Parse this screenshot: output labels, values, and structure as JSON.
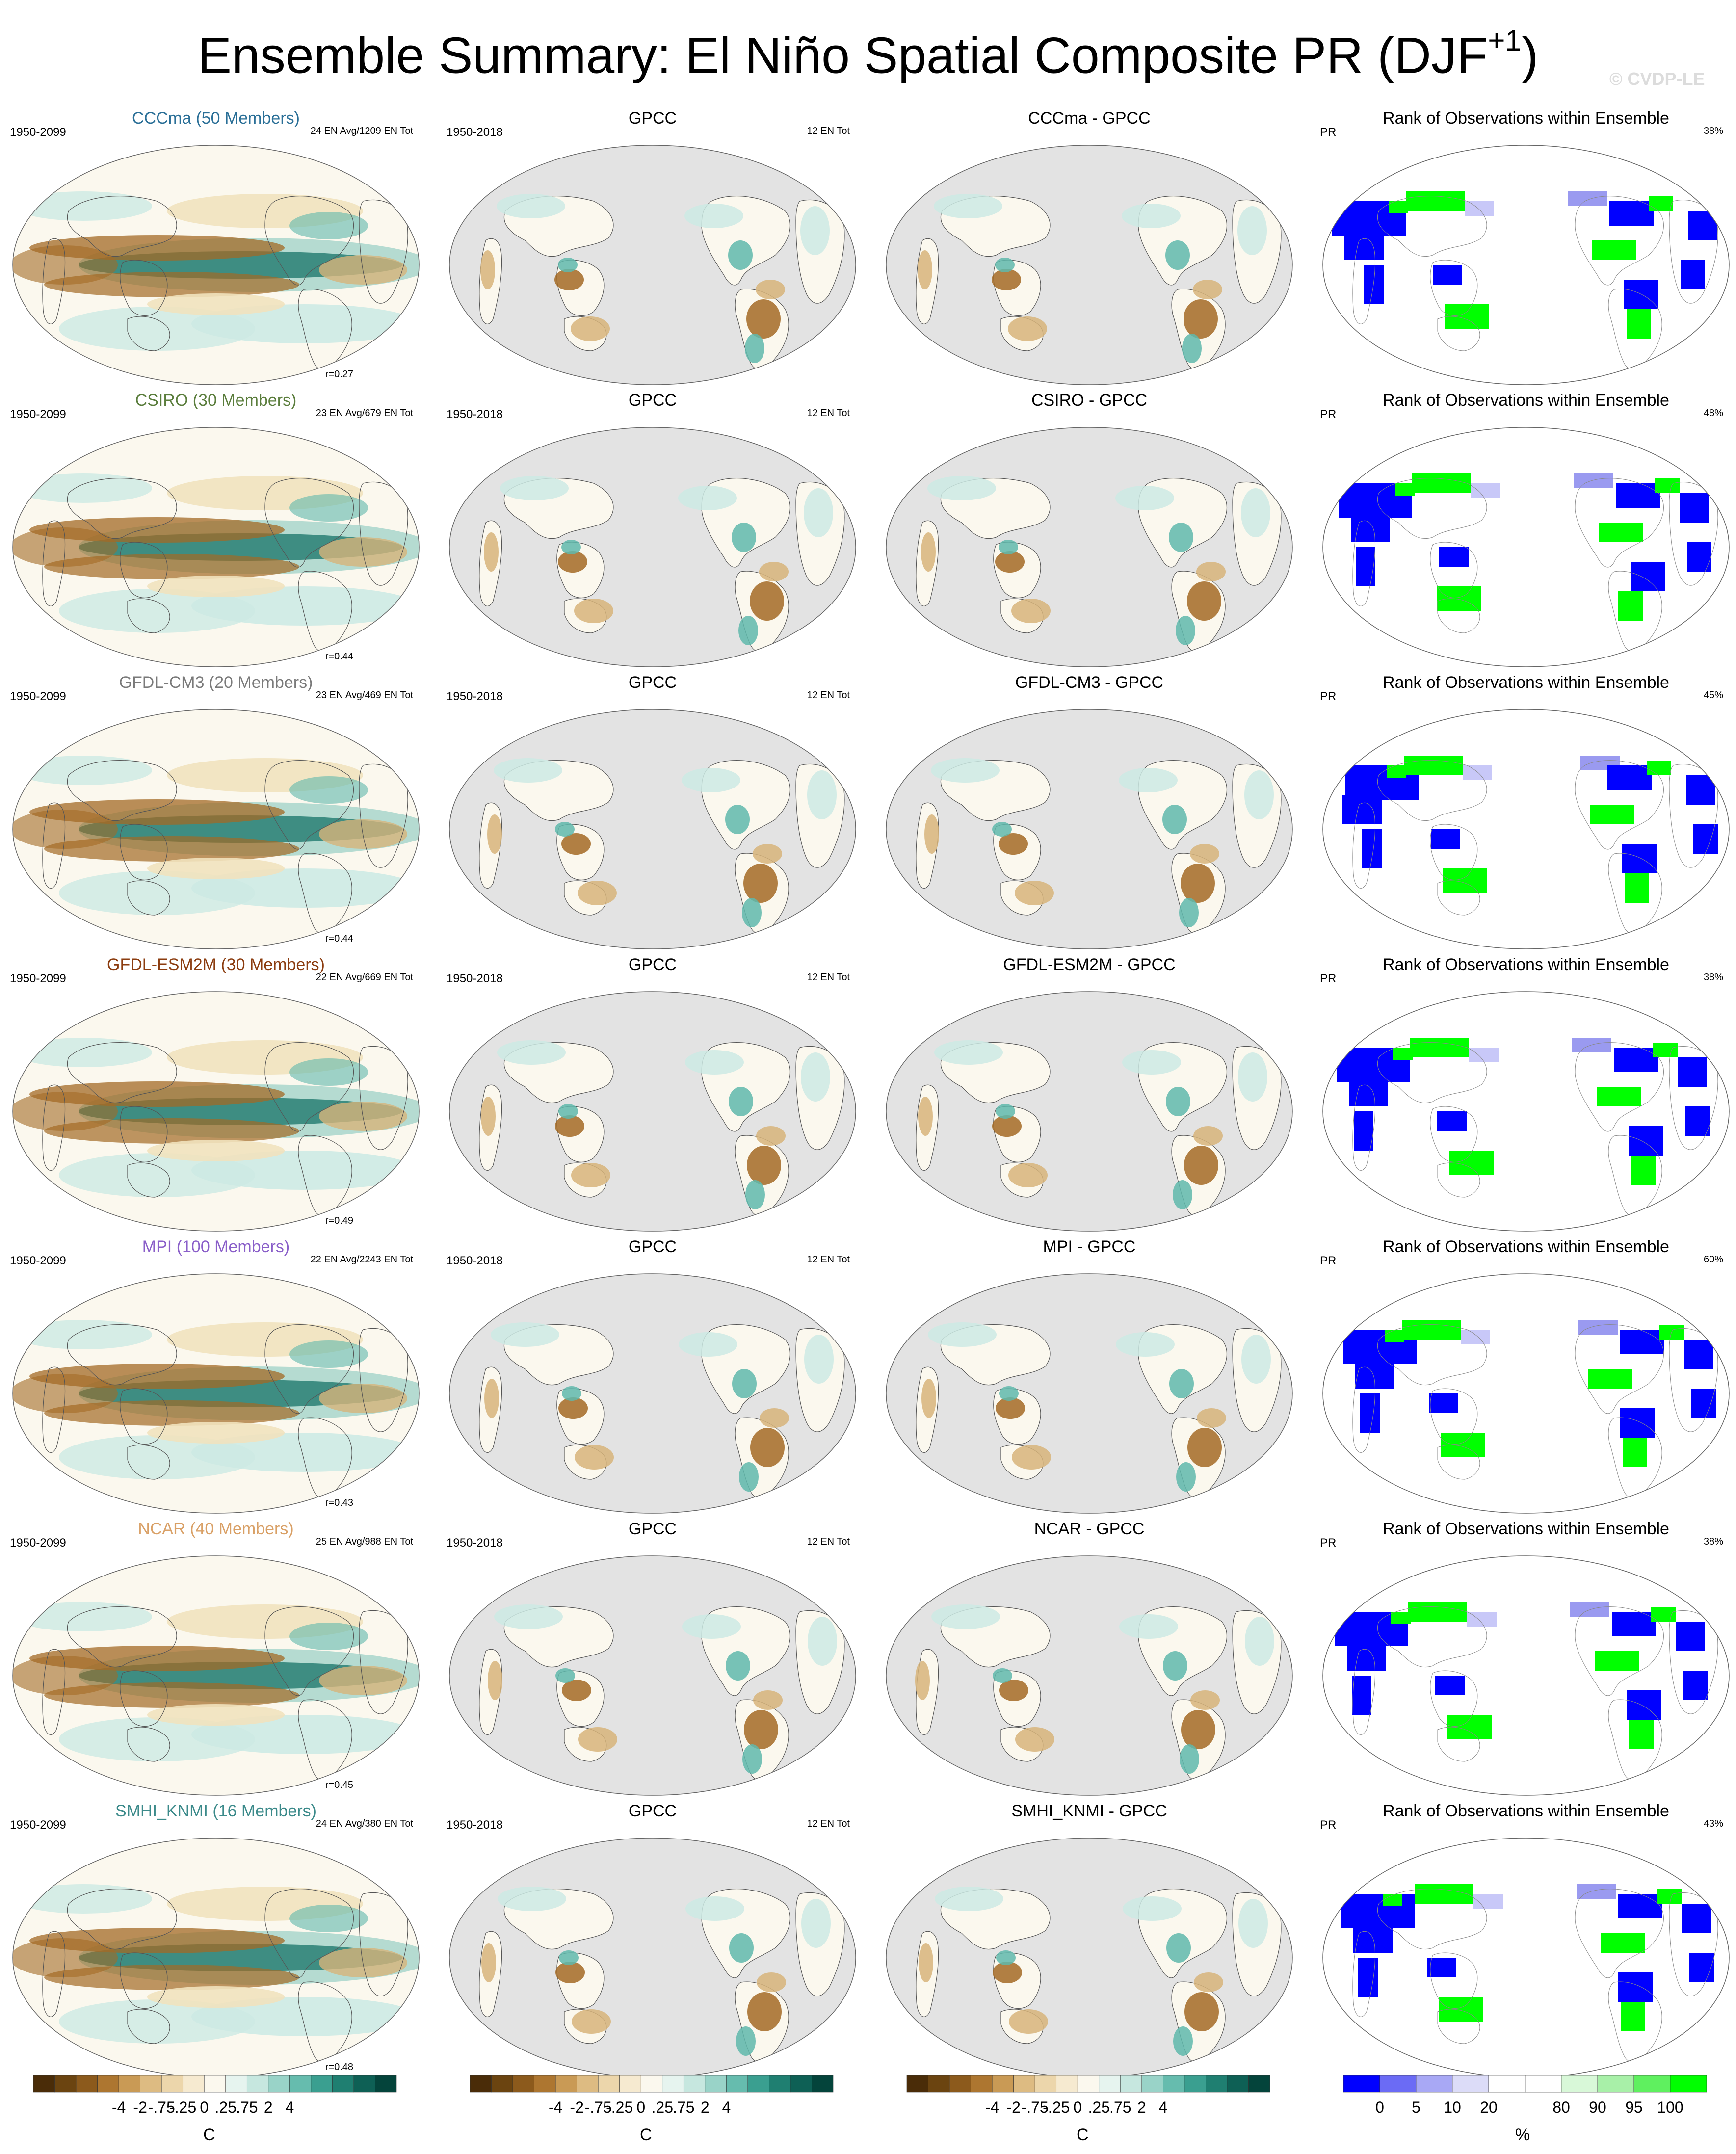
{
  "title_main": "Ensemble Summary: El Niño Spatial Composite PR (DJF",
  "title_sup": "+1",
  "title_end": ")",
  "watermark": "© CVDP-LE",
  "colors": {
    "brown_dark": "#5b3a0d",
    "brown": "#a36a24",
    "tan": "#d7b47a",
    "tan_light": "#f1e2be",
    "neutral": "#fbf8ee",
    "teal_light": "#cdeae4",
    "teal": "#5fb8ac",
    "teal_dark": "#0b5a4f",
    "blue": "#0000ff",
    "green": "#00ff00",
    "land_gray": "#e3e3e3",
    "coast": "#555555"
  },
  "rows": [
    {
      "model": "CCCma (50 Members)",
      "model_color": "#2a6f97",
      "diff": "CCCma - GPCC",
      "period": "1950-2099",
      "ens": "24 EN Avg/1209 EN Tot",
      "r": "r=0.27",
      "pct": "38%"
    },
    {
      "model": "CSIRO (30 Members)",
      "model_color": "#5a7d3c",
      "diff": "CSIRO - GPCC",
      "period": "1950-2099",
      "ens": "23 EN Avg/679 EN Tot",
      "r": "r=0.44",
      "pct": "48%"
    },
    {
      "model": "GFDL-CM3 (20 Members)",
      "model_color": "#7a7a7a",
      "diff": "GFDL-CM3 - GPCC",
      "period": "1950-2099",
      "ens": "23 EN Avg/469 EN Tot",
      "r": "r=0.44",
      "pct": "45%"
    },
    {
      "model": "GFDL-ESM2M (30 Members)",
      "model_color": "#8b3c0f",
      "diff": "GFDL-ESM2M - GPCC",
      "period": "1950-2099",
      "ens": "22 EN Avg/669 EN Tot",
      "r": "r=0.49",
      "pct": "38%"
    },
    {
      "model": "MPI (100 Members)",
      "model_color": "#8a5fc9",
      "diff": "MPI - GPCC",
      "period": "1950-2099",
      "ens": "22 EN Avg/2243 EN Tot",
      "r": "r=0.43",
      "pct": "60%"
    },
    {
      "model": "NCAR (40 Members)",
      "model_color": "#d9a066",
      "diff": "NCAR - GPCC",
      "period": "1950-2099",
      "ens": "25 EN Avg/988 EN Tot",
      "r": "r=0.45",
      "pct": "38%"
    },
    {
      "model": "SMHI_KNMI (16 Members)",
      "model_color": "#3b8a8a",
      "diff": "SMHI_KNMI - GPCC",
      "period": "1950-2099",
      "ens": "24 EN Avg/380 EN Tot",
      "r": "r=0.48",
      "pct": "43%"
    }
  ],
  "obs": {
    "title": "GPCC",
    "period": "1950-2018",
    "ens": "12 EN Tot"
  },
  "rank": {
    "title": "Rank of Observations within Ensemble",
    "var": "PR"
  },
  "colorbar": {
    "ticks": [
      "-4",
      "-2",
      "-.75",
      "-.25",
      "0",
      ".25",
      ".75",
      "2",
      "4"
    ],
    "unit": "C",
    "rank_ticks": [
      "0",
      "5",
      "10",
      "20",
      "80",
      "90",
      "95",
      "100"
    ],
    "rank_unit": "%"
  }
}
